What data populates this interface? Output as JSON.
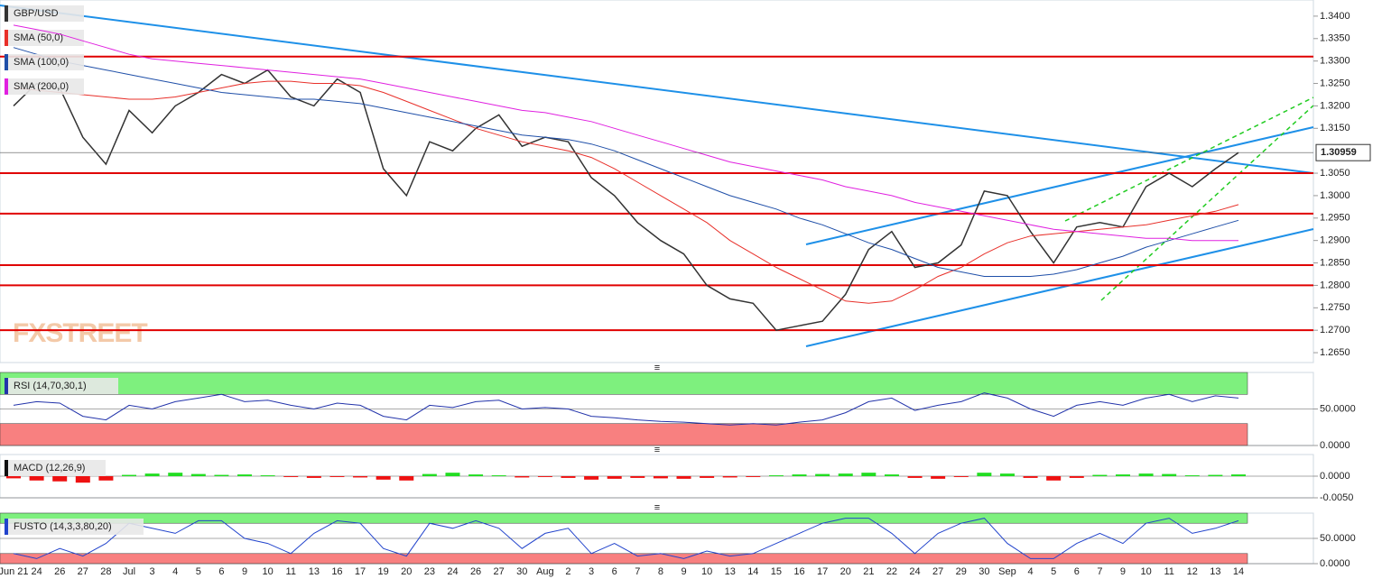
{
  "chart_data": [
    {
      "type": "line",
      "watermark": "FXSTREET",
      "categories": [
        "Jun 21",
        "24",
        "26",
        "27",
        "28",
        "Jul",
        "3",
        "4",
        "5",
        "6",
        "9",
        "10",
        "11",
        "13",
        "16",
        "17",
        "19",
        "20",
        "23",
        "24",
        "26",
        "27",
        "30",
        "Aug",
        "2",
        "3",
        "6",
        "7",
        "8",
        "9",
        "10",
        "13",
        "14",
        "15",
        "16",
        "17",
        "20",
        "21",
        "22",
        "24",
        "27",
        "29",
        "30",
        "Sep",
        "4",
        "5",
        "6",
        "7",
        "9",
        "10",
        "11",
        "12",
        "13",
        "14"
      ],
      "series": [
        {
          "name": "GBP/USD",
          "color": "#333333",
          "values": [
            1.32,
            1.325,
            1.324,
            1.313,
            1.307,
            1.319,
            1.314,
            1.32,
            1.323,
            1.327,
            1.325,
            1.328,
            1.322,
            1.32,
            1.326,
            1.323,
            1.306,
            1.3,
            1.312,
            1.31,
            1.315,
            1.318,
            1.311,
            1.313,
            1.312,
            1.304,
            1.3,
            1.294,
            1.29,
            1.287,
            1.28,
            1.277,
            1.276,
            1.27,
            1.271,
            1.272,
            1.278,
            1.288,
            1.292,
            1.284,
            1.285,
            1.289,
            1.301,
            1.3,
            1.292,
            1.285,
            1.293,
            1.294,
            1.293,
            1.302,
            1.305,
            1.302,
            1.306,
            1.3096
          ]
        },
        {
          "name": "SMA (50,0)",
          "color": "#e8302a",
          "values": [
            1.324,
            1.3235,
            1.323,
            1.3225,
            1.322,
            1.3215,
            1.3215,
            1.322,
            1.323,
            1.324,
            1.325,
            1.3255,
            1.3255,
            1.325,
            1.325,
            1.3245,
            1.323,
            1.321,
            1.319,
            1.317,
            1.315,
            1.3135,
            1.312,
            1.311,
            1.31,
            1.3085,
            1.306,
            1.303,
            1.3,
            1.297,
            1.294,
            1.29,
            1.287,
            1.284,
            1.2815,
            1.279,
            1.2765,
            1.276,
            1.2765,
            1.279,
            1.282,
            1.284,
            1.287,
            1.2895,
            1.291,
            1.2915,
            1.292,
            1.2925,
            1.293,
            1.2935,
            1.2945,
            1.2955,
            1.2965,
            1.298
          ]
        },
        {
          "name": "SMA (100,0)",
          "color": "#1f4fa8",
          "values": [
            1.333,
            1.3315,
            1.33,
            1.329,
            1.328,
            1.327,
            1.326,
            1.325,
            1.324,
            1.323,
            1.3225,
            1.322,
            1.3215,
            1.3215,
            1.321,
            1.3205,
            1.3195,
            1.3185,
            1.3175,
            1.3165,
            1.3155,
            1.3145,
            1.3135,
            1.313,
            1.3125,
            1.3115,
            1.31,
            1.308,
            1.306,
            1.304,
            1.302,
            1.3,
            1.2985,
            1.297,
            1.295,
            1.2935,
            1.2915,
            1.2895,
            1.288,
            1.286,
            1.284,
            1.283,
            1.282,
            1.282,
            1.282,
            1.2825,
            1.2835,
            1.285,
            1.2865,
            1.2885,
            1.29,
            1.2915,
            1.293,
            1.2945
          ]
        },
        {
          "name": "SMA (200,0)",
          "color": "#e020e0",
          "values": [
            1.338,
            1.337,
            1.336,
            1.3345,
            1.333,
            1.3315,
            1.3305,
            1.33,
            1.3295,
            1.329,
            1.3285,
            1.328,
            1.3275,
            1.327,
            1.3265,
            1.326,
            1.325,
            1.324,
            1.323,
            1.322,
            1.321,
            1.32,
            1.319,
            1.3185,
            1.3175,
            1.3165,
            1.315,
            1.3135,
            1.312,
            1.3105,
            1.309,
            1.3075,
            1.3065,
            1.3055,
            1.3045,
            1.3035,
            1.302,
            1.301,
            1.3,
            1.2985,
            1.2975,
            1.2965,
            1.2955,
            1.2945,
            1.2935,
            1.2925,
            1.292,
            1.2915,
            1.291,
            1.2905,
            1.2905,
            1.29,
            1.29,
            1.29
          ]
        }
      ],
      "levels": [
        1.331,
        1.305,
        1.296,
        1.2845,
        1.28,
        1.27
      ],
      "level_color": "#e00000",
      "last_value": 1.30959,
      "last_value_label": "1.30959",
      "ylim": [
        1.2628,
        1.3436
      ],
      "yticks": [
        {
          "value": 1.34,
          "label": "1.3400"
        },
        {
          "value": 1.335,
          "label": "1.3350"
        },
        {
          "value": 1.33,
          "label": "1.3300"
        },
        {
          "value": 1.325,
          "label": "1.3250"
        },
        {
          "value": 1.32,
          "label": "1.3200"
        },
        {
          "value": 1.315,
          "label": "1.3150"
        },
        {
          "value": 1.305,
          "label": "1.3050"
        },
        {
          "value": 1.3,
          "label": "1.3000"
        },
        {
          "value": 1.295,
          "label": "1.2950"
        },
        {
          "value": 1.29,
          "label": "1.2900"
        },
        {
          "value": 1.285,
          "label": "1.2850"
        },
        {
          "value": 1.28,
          "label": "1.2800"
        },
        {
          "value": 1.275,
          "label": "1.2750"
        },
        {
          "value": 1.27,
          "label": "1.2700"
        },
        {
          "value": 1.265,
          "label": "1.2650"
        }
      ]
    },
    {
      "type": "line",
      "zones": [
        30,
        70
      ],
      "series": [
        {
          "name": "RSI (14,70,30,1)",
          "color": "#2233aa",
          "values": [
            55,
            60,
            58,
            40,
            35,
            55,
            50,
            60,
            65,
            70,
            60,
            62,
            55,
            50,
            58,
            55,
            40,
            35,
            55,
            52,
            60,
            62,
            50,
            52,
            50,
            40,
            38,
            35,
            33,
            32,
            30,
            28,
            30,
            28,
            32,
            35,
            45,
            60,
            65,
            48,
            55,
            60,
            72,
            65,
            50,
            40,
            55,
            60,
            55,
            65,
            70,
            60,
            68,
            65
          ]
        }
      ],
      "ylim": [
        0,
        100
      ],
      "yticks": [
        {
          "value": 50,
          "label": "50.0000"
        },
        {
          "value": 0,
          "label": "0.0000"
        }
      ]
    },
    {
      "type": "bar",
      "color_up": "#22dd22",
      "color_down": "#ee1111",
      "series": [
        {
          "name": "MACD (12,26,9)",
          "color": "#111111",
          "values": [
            -0.0005,
            -0.001,
            -0.0012,
            -0.0015,
            -0.001,
            0.0003,
            0.0006,
            0.0008,
            0.0005,
            0.0003,
            0.0004,
            0.0002,
            -0.0002,
            -0.0004,
            -0.0002,
            -0.0003,
            -0.0008,
            -0.001,
            0.0005,
            0.0008,
            0.0004,
            0.0002,
            -0.0003,
            -0.0002,
            -0.0004,
            -0.0008,
            -0.0006,
            -0.0004,
            -0.0005,
            -0.0006,
            -0.0004,
            -0.0003,
            -0.0002,
            0.0002,
            0.0004,
            0.0005,
            0.0006,
            0.0008,
            0.0004,
            -0.0004,
            -0.0006,
            -0.0002,
            0.0008,
            0.0006,
            -0.0004,
            -0.001,
            -0.0004,
            0.0003,
            0.0004,
            0.0006,
            0.0005,
            0.0002,
            0.0003,
            0.0004
          ]
        }
      ],
      "ylim": [
        -0.005,
        0.005
      ],
      "yticks": [
        {
          "value": 0,
          "label": "0.0000"
        },
        {
          "value": -0.005,
          "label": "-0.0050"
        }
      ]
    },
    {
      "type": "line",
      "zones": [
        20,
        80
      ],
      "series": [
        {
          "name": "FUSTO (14,3,3,80,20)",
          "color": "#2244cc",
          "values": [
            20,
            10,
            30,
            15,
            40,
            80,
            70,
            60,
            85,
            85,
            50,
            40,
            20,
            60,
            85,
            80,
            30,
            15,
            80,
            70,
            85,
            70,
            30,
            60,
            70,
            20,
            40,
            15,
            20,
            10,
            25,
            15,
            20,
            40,
            60,
            80,
            90,
            90,
            60,
            20,
            60,
            80,
            90,
            40,
            10,
            10,
            40,
            60,
            40,
            80,
            90,
            60,
            70,
            85
          ]
        }
      ],
      "ylim": [
        0,
        100
      ],
      "yticks": [
        {
          "value": 50,
          "label": "50.0000"
        },
        {
          "value": 0,
          "label": "0.0000"
        }
      ]
    }
  ]
}
